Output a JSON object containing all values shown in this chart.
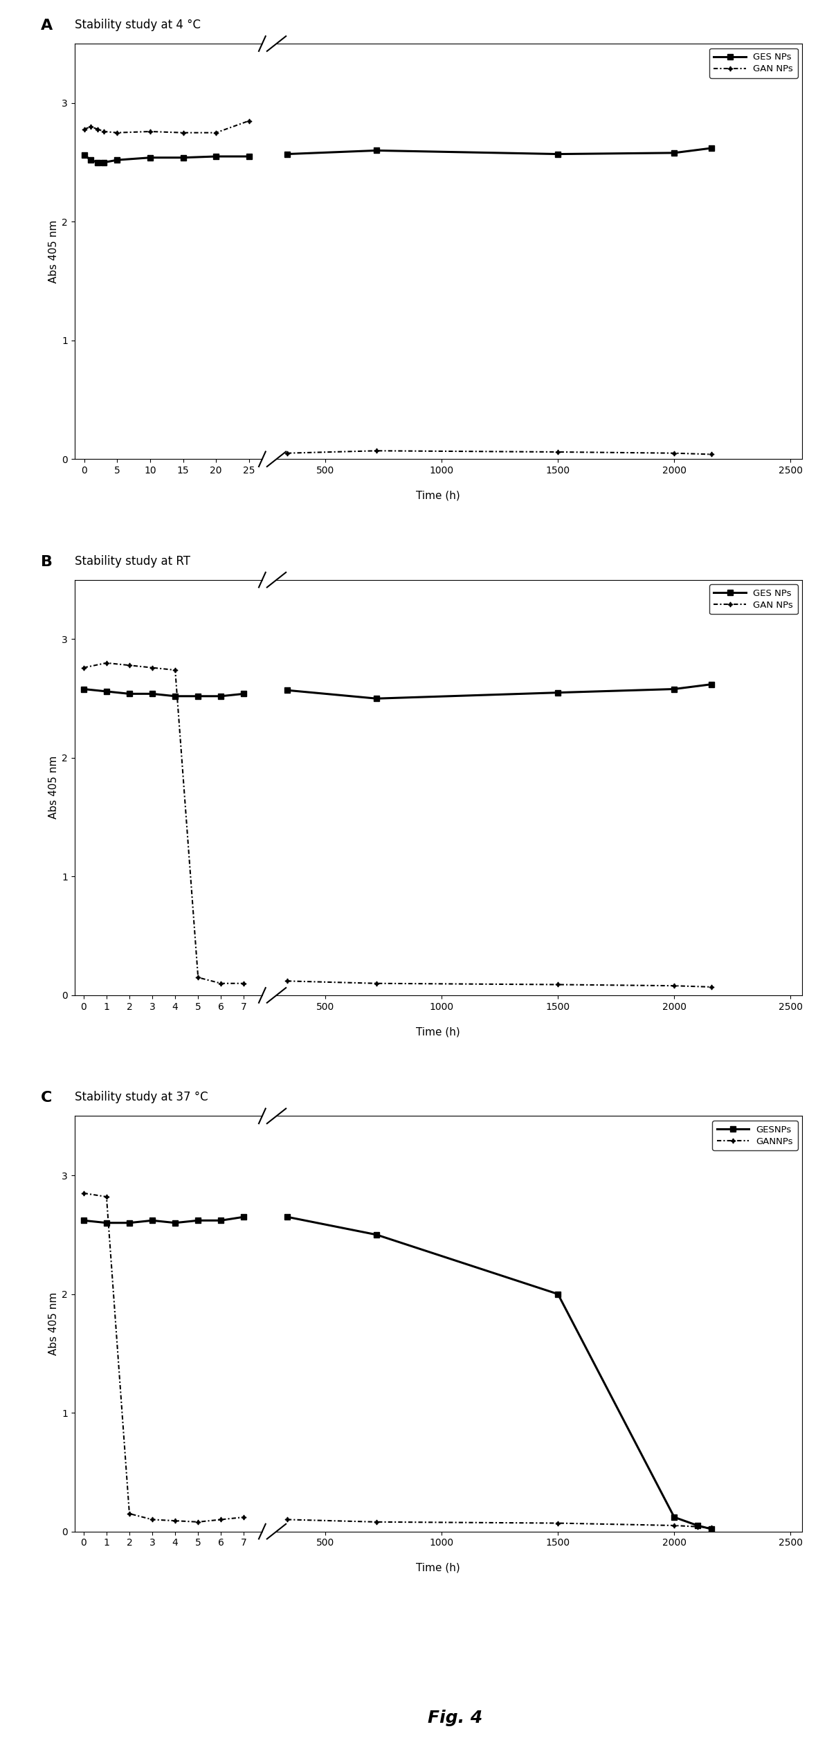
{
  "panel_A": {
    "title": "Stability study at 4 °C",
    "label": "A",
    "GES_x": [
      0,
      1,
      2,
      3,
      5,
      10,
      15,
      20,
      25,
      336,
      720,
      1500,
      2000,
      2160
    ],
    "GES_y": [
      2.56,
      2.52,
      2.5,
      2.5,
      2.52,
      2.54,
      2.54,
      2.55,
      2.55,
      2.57,
      2.6,
      2.57,
      2.58,
      2.62
    ],
    "GAN_x": [
      0,
      1,
      2,
      3,
      5,
      10,
      15,
      20,
      25,
      336,
      720,
      1500,
      2000,
      2160
    ],
    "GAN_y": [
      2.78,
      2.8,
      2.78,
      2.76,
      2.75,
      2.76,
      2.75,
      2.75,
      2.85,
      0.05,
      0.07,
      0.06,
      0.05,
      0.04
    ],
    "xticks_left": [
      0,
      5,
      10,
      15,
      20,
      25
    ],
    "xticks_right": [
      500,
      1000,
      1500,
      2000,
      2500
    ],
    "ylim": [
      0,
      3.5
    ],
    "yticks": [
      0,
      1,
      2,
      3
    ],
    "xlim_left": [
      -1.5,
      27
    ],
    "xlim_right": [
      290,
      2550
    ],
    "break_x": 27,
    "legend_GES": "GES NPs",
    "legend_GAN": "GAN NPs"
  },
  "panel_B": {
    "title": "Stability study at RT",
    "label": "B",
    "GES_x": [
      0,
      1,
      2,
      3,
      4,
      5,
      6,
      7,
      336,
      720,
      1500,
      2000,
      2160
    ],
    "GES_y": [
      2.58,
      2.56,
      2.54,
      2.54,
      2.52,
      2.52,
      2.52,
      2.54,
      2.57,
      2.5,
      2.55,
      2.58,
      2.62
    ],
    "GAN_x": [
      0,
      1,
      2,
      3,
      4,
      5,
      6,
      7,
      336,
      720,
      1500,
      2000,
      2160
    ],
    "GAN_y": [
      2.76,
      2.8,
      2.78,
      2.76,
      2.74,
      0.15,
      0.1,
      0.1,
      0.12,
      0.1,
      0.09,
      0.08,
      0.07
    ],
    "xticks_left": [
      0,
      1,
      2,
      3,
      4,
      5,
      6,
      7
    ],
    "xticks_right": [
      500,
      1000,
      1500,
      2000,
      2500
    ],
    "ylim": [
      0,
      3.5
    ],
    "yticks": [
      0,
      1,
      2,
      3
    ],
    "xlim_left": [
      -0.4,
      7.8
    ],
    "xlim_right": [
      290,
      2550
    ],
    "break_x": 7.8,
    "legend_GES": "GES NPs",
    "legend_GAN": "GAN NPs"
  },
  "panel_C": {
    "title": "Stability study at 37 °C",
    "label": "C",
    "GES_x": [
      0,
      1,
      2,
      3,
      4,
      5,
      6,
      7,
      336,
      720,
      1500,
      2000,
      2100,
      2160
    ],
    "GES_y": [
      2.62,
      2.6,
      2.6,
      2.62,
      2.6,
      2.62,
      2.62,
      2.65,
      2.65,
      2.5,
      2.0,
      0.12,
      0.05,
      0.02
    ],
    "GAN_x": [
      0,
      1,
      2,
      3,
      4,
      5,
      6,
      7,
      336,
      720,
      1500,
      2000,
      2100,
      2160
    ],
    "GAN_y": [
      2.85,
      2.82,
      0.15,
      0.1,
      0.09,
      0.08,
      0.1,
      0.12,
      0.1,
      0.08,
      0.07,
      0.05,
      0.04,
      0.03
    ],
    "xticks_left": [
      0,
      1,
      2,
      3,
      4,
      5,
      6,
      7
    ],
    "xticks_right": [
      500,
      1000,
      1500,
      2000,
      2500
    ],
    "ylim": [
      0,
      3.5
    ],
    "yticks": [
      0,
      1,
      2,
      3
    ],
    "xlim_left": [
      -0.4,
      7.8
    ],
    "xlim_right": [
      290,
      2550
    ],
    "break_x": 7.8,
    "legend_GES": "GESNPs",
    "legend_GAN": "GANNPs"
  },
  "ylabel": "Abs 405 nm",
  "xlabel": "Time (h)",
  "fig_label": "Fig. 4"
}
